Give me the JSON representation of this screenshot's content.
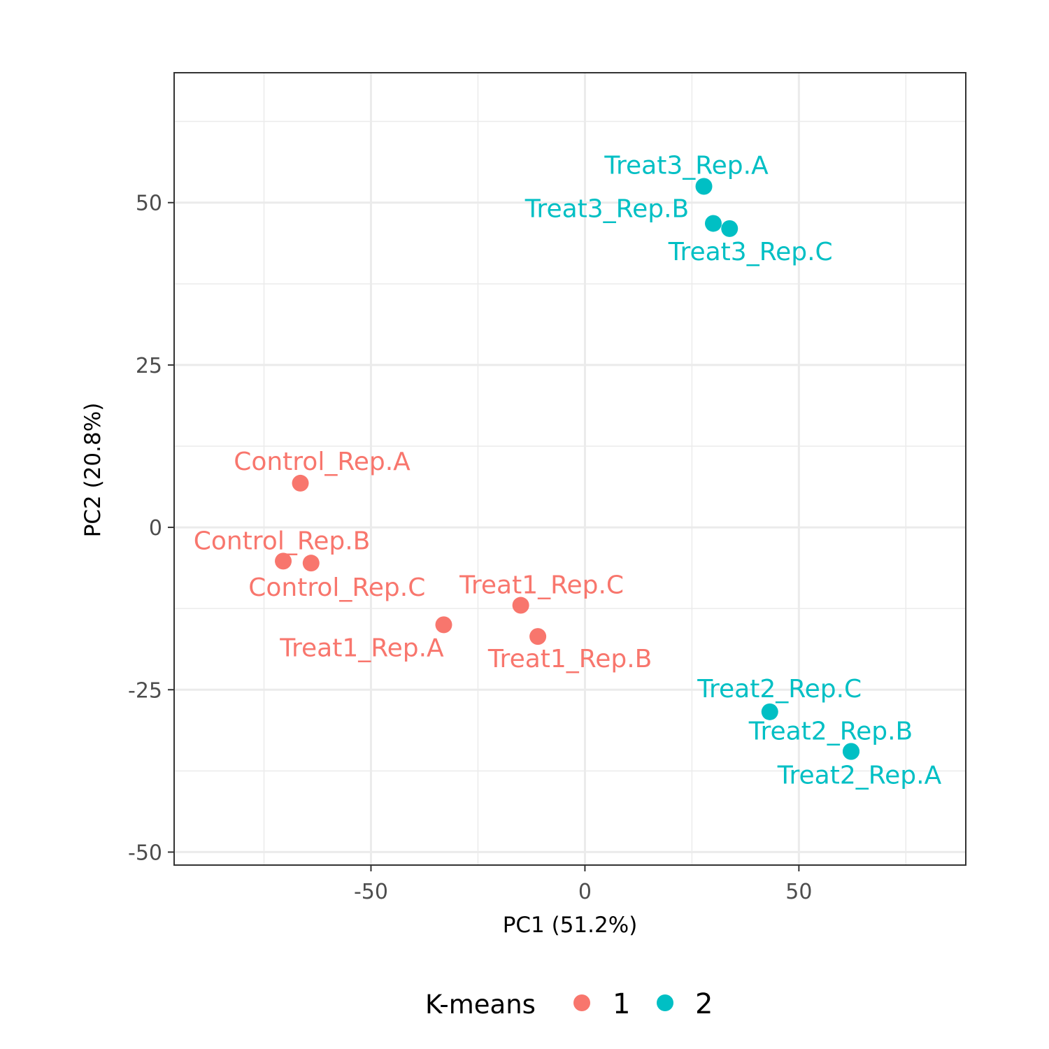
{
  "chart_data": {
    "type": "scatter",
    "xlabel": "PC1 (51.2%)",
    "ylabel": "PC2 (20.8%)",
    "xlim": [
      -96,
      89
    ],
    "ylim": [
      -52,
      70
    ],
    "x_ticks": [
      -50,
      0,
      50
    ],
    "y_ticks": [
      -50,
      -25,
      0,
      25,
      50
    ],
    "x_tick_labels": [
      "-50",
      "0",
      "50"
    ],
    "y_tick_labels": [
      "-50",
      "-25",
      "0",
      "25",
      "50"
    ],
    "grid": true,
    "legend": {
      "title": "K-means",
      "position": "bottom",
      "entries": [
        {
          "label": "1",
          "color": "#f8766d"
        },
        {
          "label": "2",
          "color": "#00bfc4"
        }
      ]
    },
    "series": [
      {
        "name": "1",
        "color": "#f8766d",
        "points": [
          {
            "label": "Control_Rep.A",
            "x": -66.5,
            "y": 6.8
          },
          {
            "label": "Control_Rep.B",
            "x": -70.5,
            "y": -5.2
          },
          {
            "label": "Control_Rep.C",
            "x": -64,
            "y": -5.5
          },
          {
            "label": "Treat1_Rep.A",
            "x": -33,
            "y": -15
          },
          {
            "label": "Treat1_Rep.B",
            "x": -11,
            "y": -16.8
          },
          {
            "label": "Treat1_Rep.C",
            "x": -15,
            "y": -12
          }
        ]
      },
      {
        "name": "2",
        "color": "#00bfc4",
        "points": [
          {
            "label": "Treat2_Rep.A",
            "x": 62.2,
            "y": -34.5
          },
          {
            "label": "Treat2_Rep.B",
            "x": 62.2,
            "y": -34.5
          },
          {
            "label": "Treat2_Rep.C",
            "x": 43.2,
            "y": -28.4
          },
          {
            "label": "Treat3_Rep.A",
            "x": 27.8,
            "y": 52.5
          },
          {
            "label": "Treat3_Rep.B",
            "x": 30,
            "y": 46.8
          },
          {
            "label": "Treat3_Rep.C",
            "x": 33.8,
            "y": 46
          }
        ]
      }
    ]
  }
}
